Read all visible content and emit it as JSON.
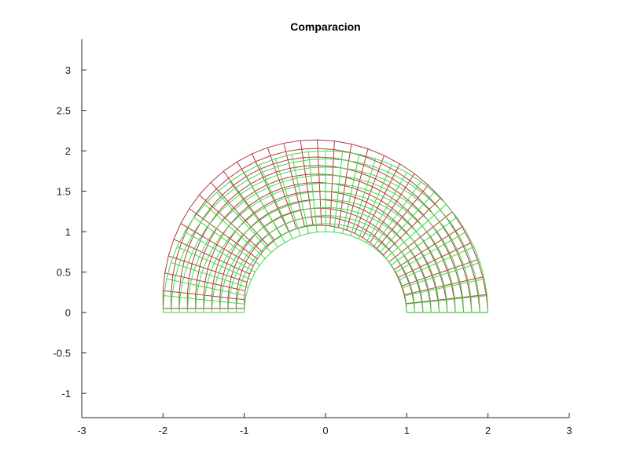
{
  "chart_data": {
    "type": "line",
    "title": "Comparacion",
    "xlabel": "",
    "ylabel": "",
    "xlim": [
      -3,
      3
    ],
    "ylim": [
      -1.3,
      3.38
    ],
    "xticks": [
      "-3",
      "-2",
      "-1",
      "0",
      "1",
      "2",
      "3"
    ],
    "yticks": [
      "-1",
      "-0.5",
      "0",
      "0.5",
      "1",
      "1.5",
      "2",
      "2.5",
      "3"
    ],
    "grid": false,
    "legend": "none",
    "series": [
      {
        "kind": "undeformed-mesh",
        "color": "#3fd94a",
        "inner_radius": 1,
        "outer_radius": 2,
        "angle_range_deg": [
          0,
          180
        ],
        "radial_divisions": 10,
        "angular_divisions": 30
      },
      {
        "kind": "deformed-mesh",
        "color": "#b5383f",
        "outer_boundary_points": [
          [
            2.0,
            0.0
          ],
          [
            1.73,
            1.0
          ],
          [
            1.0,
            1.76
          ],
          [
            -0.1,
            2.13
          ],
          [
            -1.05,
            1.8
          ],
          [
            -1.74,
            1.05
          ],
          [
            -2.0,
            0.05
          ]
        ],
        "bottom_left_edge": [
          [
            -2.0,
            0.05
          ],
          [
            -1.0,
            0.05
          ]
        ]
      }
    ]
  }
}
